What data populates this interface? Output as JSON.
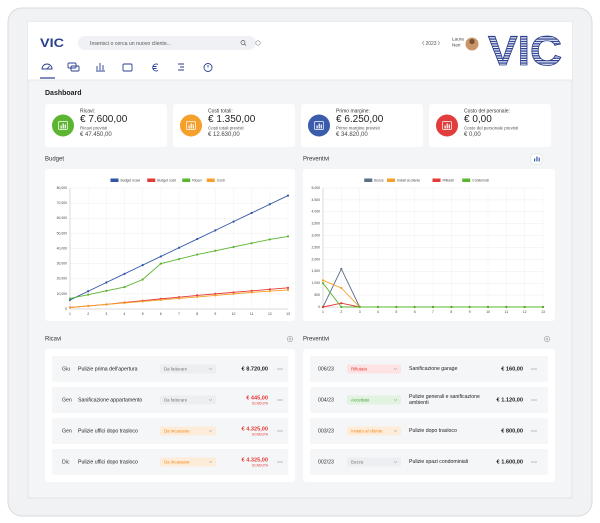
{
  "header": {
    "logo": "VIC",
    "search_placeholder": "Inserisci o cerca un nuovo cliente...",
    "year": "2023",
    "user": [
      "Laura",
      "Neri"
    ]
  },
  "page_title": "Dashboard",
  "kpis": [
    {
      "label": "Ricavi:",
      "value": "€ 7.600,00",
      "forecast_label": "Ricavi previsti",
      "forecast": "€ 47.450,00",
      "color": "#5cb531"
    },
    {
      "label": "Costi totali:",
      "value": "€ 1.350,00",
      "forecast_label": "Costi totali previsti",
      "forecast": "€ 12.630,00",
      "color": "#f5a02a"
    },
    {
      "label": "Primo margine:",
      "value": "€ 6.250,00",
      "forecast_label": "Primo margine previsti",
      "forecast": "€ 34.820,00",
      "color": "#3b5bab"
    },
    {
      "label": "Costo del personale:",
      "value": "€ 0,00",
      "forecast_label": "Costo del personale previsti",
      "forecast": "€ 0,00",
      "color": "#e23c3c"
    }
  ],
  "chart_data": [
    {
      "type": "line",
      "title": "Budget",
      "x": [
        1,
        2,
        3,
        4,
        5,
        6,
        7,
        8,
        9,
        10,
        11,
        12,
        13
      ],
      "xlim": [
        1,
        13
      ],
      "xticks": [
        1,
        2,
        3,
        4,
        5,
        6,
        7,
        8,
        9,
        10,
        11,
        12,
        13
      ],
      "ylim": [
        0,
        80000
      ],
      "yticks": [
        0,
        {
          "value": 10000,
          "label": "10,000"
        },
        {
          "value": 20000,
          "label": "20,000"
        },
        {
          "value": 30000,
          "label": "30,000"
        },
        {
          "value": 40000,
          "label": "40,000"
        },
        {
          "value": 50000,
          "label": "50,000"
        },
        {
          "value": 60000,
          "label": "60,000"
        },
        {
          "value": 70000,
          "label": "70,000"
        },
        {
          "value": 80000,
          "label": "80,000"
        }
      ],
      "grid": true,
      "series": [
        {
          "name": "Budget ricavi",
          "color": "#3056a8",
          "values": [
            6000,
            11750,
            17500,
            23250,
            29000,
            34750,
            40500,
            46250,
            52000,
            57750,
            63500,
            69250,
            75000
          ]
        },
        {
          "name": "Budget costi",
          "color": "#e53935",
          "values": [
            1000,
            2000,
            3000,
            4300,
            5500,
            6700,
            7800,
            9000,
            10000,
            11000,
            12000,
            13000,
            14000
          ]
        },
        {
          "name": "Ricavi",
          "color": "#5cb531",
          "values": [
            7000,
            9500,
            12000,
            14500,
            19500,
            30000,
            33000,
            36000,
            38500,
            41000,
            43500,
            46000,
            48000
          ]
        },
        {
          "name": "Costi",
          "color": "#f5a02a",
          "values": [
            1000,
            2000,
            3000,
            4000,
            5000,
            6000,
            7000,
            8000,
            9000,
            10000,
            11000,
            11800,
            12600
          ]
        }
      ]
    },
    {
      "type": "line",
      "title": "Preventivi",
      "x": [
        1,
        2,
        3,
        4,
        5,
        6,
        7,
        8,
        9,
        10,
        11,
        12,
        13
      ],
      "xlim": [
        1,
        13
      ],
      "xticks": [
        1,
        2,
        3,
        4,
        5,
        6,
        7,
        8,
        9,
        10,
        11,
        12,
        13
      ],
      "ylim": [
        0,
        5000
      ],
      "yticks": [
        0,
        500,
        {
          "value": 1000,
          "label": "1,000"
        },
        {
          "value": 1500,
          "label": "1,500"
        },
        {
          "value": 2000,
          "label": "2,000"
        },
        {
          "value": 2500,
          "label": "2,500"
        },
        {
          "value": 3000,
          "label": "3,000"
        },
        {
          "value": 3500,
          "label": "3,500"
        },
        {
          "value": 4000,
          "label": "4,000"
        },
        {
          "value": 4500,
          "label": "4,500"
        },
        {
          "value": 5000,
          "label": "5,000"
        }
      ],
      "grid": true,
      "series": [
        {
          "name": "Bozze",
          "color": "#5b7089",
          "values": [
            0,
            1600,
            0,
            0,
            0,
            0,
            0,
            0,
            0,
            0,
            0,
            0,
            0
          ]
        },
        {
          "name": "Inviati al cliente",
          "color": "#f5a02a",
          "values": [
            1120,
            800,
            0,
            0,
            0,
            0,
            0,
            0,
            0,
            0,
            0,
            0,
            0
          ]
        },
        {
          "name": "Rifiutati",
          "color": "#e53935",
          "values": [
            0,
            160,
            0,
            0,
            0,
            0,
            0,
            0,
            0,
            0,
            0,
            0,
            0
          ]
        },
        {
          "name": "Confermati",
          "color": "#5cb531",
          "values": [
            1000,
            0,
            0,
            0,
            0,
            0,
            0,
            0,
            0,
            0,
            0,
            0,
            0
          ]
        }
      ]
    }
  ],
  "ricavi": {
    "title": "Ricavi",
    "rows": [
      {
        "month": "Giu",
        "description": "Pulizie prima dell'apertura",
        "status": "Da fatturare",
        "status_color": "#777777",
        "status_bg": "#eceef1",
        "amount": "€ 8.720,00",
        "amount_color": "#222222"
      },
      {
        "month": "Gen",
        "description": "Sanificazione appartamento",
        "status": "Da fatturare",
        "status_color": "#777777",
        "status_bg": "#eceef1",
        "amount": "€ 445,00",
        "amount_color": "#e53935",
        "note": "SCADUTA"
      },
      {
        "month": "Gen",
        "description": "Pulizie uffici dopo trasloco",
        "status": "Da incassare",
        "status_color": "#f08a1c",
        "status_bg": "#fdecd9",
        "amount": "€ 4.325,00",
        "amount_color": "#e53935",
        "note": "SCADUTA"
      },
      {
        "month": "Dic",
        "description": "Pulizie uffici dopo trasloco",
        "status": "Da incassare",
        "status_color": "#f08a1c",
        "status_bg": "#fdecd9",
        "amount": "€ 4.325,00",
        "amount_color": "#e53935",
        "note": "SCADUTA"
      }
    ]
  },
  "preventivi": {
    "title": "Preventivi",
    "rows": [
      {
        "code": "006/23",
        "status": "Rifiutato",
        "status_color": "#e53935",
        "status_bg": "#fde3e3",
        "description": "Sanificazione garage",
        "amount": "€ 160,00"
      },
      {
        "code": "004/23",
        "status": "Accettato",
        "status_color": "#3fa535",
        "status_bg": "#e3f3e1",
        "description": "Pulizie generali e sanificazione ambienti",
        "amount": "€ 1.120,00"
      },
      {
        "code": "003/23",
        "status": "Inviato al cliente",
        "status_color": "#f08a1c",
        "status_bg": "#fdecd9",
        "description": "Pulizie dopo trasloco",
        "amount": "€ 800,00"
      },
      {
        "code": "002/23",
        "status": "Bozza",
        "status_color": "#777777",
        "status_bg": "#eceef1",
        "description": "Pulizie spazi condominiali",
        "amount": "€ 1.600,00"
      }
    ]
  }
}
